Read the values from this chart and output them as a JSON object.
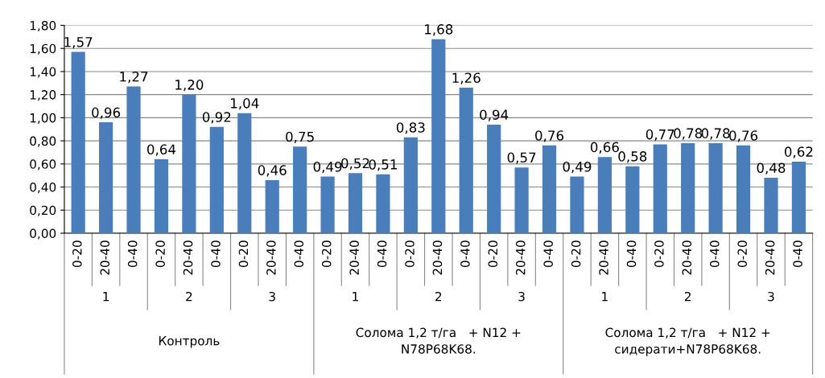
{
  "chart_data": {
    "type": "bar",
    "categories": [
      "0-20",
      "20-40",
      "0-40",
      "0-20",
      "20-40",
      "0-40",
      "0-20",
      "20-40",
      "0-40",
      "0-20",
      "20-40",
      "0-40",
      "0-20",
      "20-40",
      "0-40",
      "0-20",
      "20-40",
      "0-40",
      "0-20",
      "20-40",
      "0-40",
      "0-20",
      "20-40",
      "0-40",
      "0-20",
      "20-40",
      "0-40"
    ],
    "values": [
      1.57,
      0.96,
      1.27,
      0.64,
      1.2,
      0.92,
      1.04,
      0.46,
      0.75,
      0.49,
      0.52,
      0.51,
      0.83,
      1.68,
      1.26,
      0.94,
      0.57,
      0.76,
      0.49,
      0.66,
      0.58,
      0.77,
      0.78,
      0.78,
      0.76,
      0.48,
      0.62
    ],
    "value_labels": [
      "1,57",
      "0,96",
      "1,27",
      "0,64",
      "1,20",
      "0,92",
      "1,04",
      "0,46",
      "0,75",
      "0,49",
      "0,52",
      "0,51",
      "0,83",
      "1,68",
      "1,26",
      "0,94",
      "0,57",
      "0,76",
      "0,49",
      "0,66",
      "0,58",
      "0,77",
      "0,78",
      "0,78",
      "0,76",
      "0,48",
      "0,62"
    ],
    "color": "#4a7ebb",
    "ylim": [
      0,
      1.8
    ],
    "yticks": [
      {
        "value": 0,
        "label": "0,00"
      },
      {
        "value": 0.2,
        "label": "0,20"
      },
      {
        "value": 0.4,
        "label": "0,40"
      },
      {
        "value": 0.6,
        "label": "0,60"
      },
      {
        "value": 0.8,
        "label": "0,80"
      },
      {
        "value": 1.0,
        "label": "1,00"
      },
      {
        "value": 1.2,
        "label": "1,20"
      },
      {
        "value": 1.4,
        "label": "1,40"
      },
      {
        "value": 1.6,
        "label": "1,60"
      },
      {
        "value": 1.8,
        "label": "1,80"
      }
    ],
    "grid": "y",
    "annotations": [
      "1",
      "2",
      "3",
      "1",
      "2",
      "3",
      "1",
      "2",
      "3",
      "Контроль",
      "Солома 1,2 т/га   + N12 +\nN78P68K68.",
      "Солома 1,2 т/га   + N12 +\nсидерати+N78P68K68."
    ]
  }
}
